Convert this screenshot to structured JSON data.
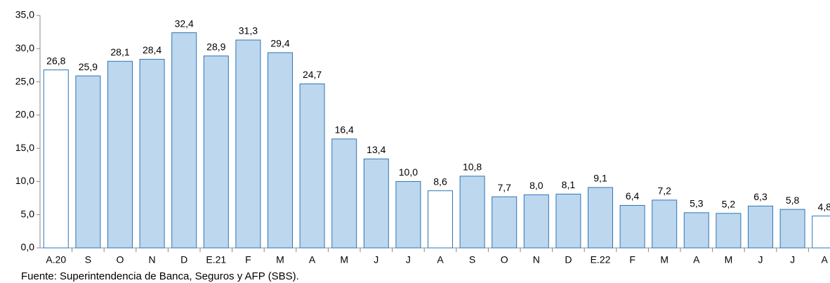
{
  "chart_data": {
    "type": "bar",
    "categories": [
      "A.20",
      "S",
      "O",
      "N",
      "D",
      "E.21",
      "F",
      "M",
      "A",
      "M",
      "J",
      "J",
      "A",
      "S",
      "O",
      "N",
      "D",
      "E.22",
      "F",
      "M",
      "A",
      "M",
      "J",
      "J",
      "A"
    ],
    "values": [
      26.8,
      25.9,
      28.1,
      28.4,
      32.4,
      28.9,
      31.3,
      29.4,
      24.7,
      16.4,
      13.4,
      10.0,
      8.6,
      10.8,
      7.7,
      8.0,
      8.1,
      9.1,
      6.4,
      7.2,
      5.3,
      5.2,
      6.3,
      5.8,
      4.8
    ],
    "value_labels": [
      "26,8",
      "25,9",
      "28,1",
      "28,4",
      "32,4",
      "28,9",
      "31,3",
      "29,4",
      "24,7",
      "16,4",
      "13,4",
      "10,0",
      "8,6",
      "10,8",
      "7,7",
      "8,0",
      "8,1",
      "9,1",
      "6,4",
      "7,2",
      "5,3",
      "5,2",
      "6,3",
      "5,8",
      "4,8"
    ],
    "colors": [
      "#ffffff",
      "#bdd7ee",
      "#bdd7ee",
      "#bdd7ee",
      "#bdd7ee",
      "#bdd7ee",
      "#bdd7ee",
      "#bdd7ee",
      "#bdd7ee",
      "#bdd7ee",
      "#bdd7ee",
      "#bdd7ee",
      "#ffffff",
      "#bdd7ee",
      "#bdd7ee",
      "#bdd7ee",
      "#bdd7ee",
      "#bdd7ee",
      "#bdd7ee",
      "#bdd7ee",
      "#bdd7ee",
      "#bdd7ee",
      "#bdd7ee",
      "#bdd7ee",
      "#ffffff"
    ],
    "edge_color": "#2e75b6",
    "ylim": [
      0,
      35
    ],
    "yticks": [
      {
        "value": 0,
        "label": "0,0"
      },
      {
        "value": 5,
        "label": "5,0"
      },
      {
        "value": 10,
        "label": "10,0"
      },
      {
        "value": 15,
        "label": "15,0"
      },
      {
        "value": 20,
        "label": "20,0"
      },
      {
        "value": 25,
        "label": "25,0"
      },
      {
        "value": 30,
        "label": "30,0"
      },
      {
        "value": 35,
        "label": "35,0"
      }
    ],
    "grid": false,
    "source": "Fuente: Superintendencia de Banca, Seguros y AFP (SBS)."
  }
}
